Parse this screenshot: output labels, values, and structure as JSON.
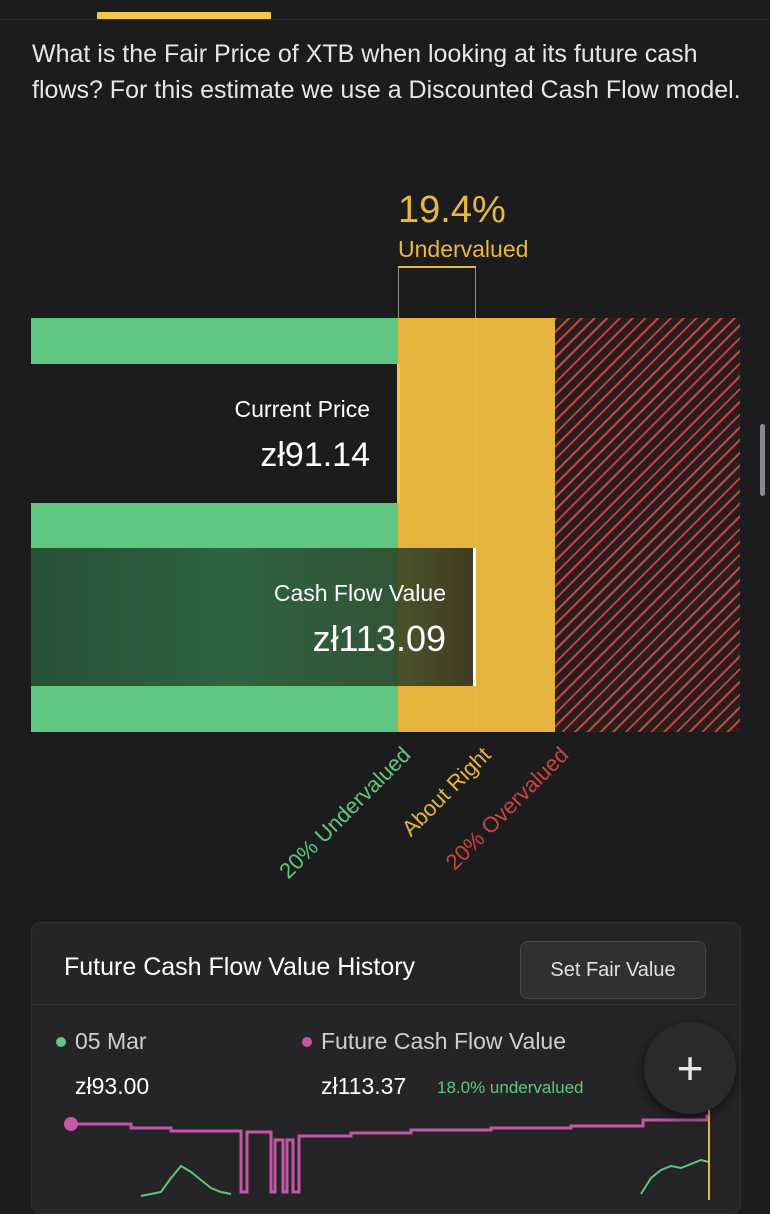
{
  "intro_text": "What is the Fair Price of XTB when looking at its future cash flows? For this estimate we use a Discounted Cash Flow model.",
  "valuation": {
    "percent": "19.4%",
    "status": "Undervalued",
    "current_price_label": "Current Price",
    "current_price_value": "zł91.14",
    "cash_flow_label": "Cash Flow Value",
    "cash_flow_value": "zł113.09"
  },
  "zones": {
    "undervalued": "20% Undervalued",
    "about_right": "About Right",
    "overvalued": "20% Overvalued"
  },
  "history_card": {
    "title": "Future Cash Flow Value History",
    "set_fair_value_button": "Set Fair Value",
    "date": "05 Mar",
    "price": "zł93.00",
    "series_label": "Future Cash Flow Value",
    "series_value": "zł113.37",
    "series_status": "18.0% undervalued"
  },
  "fab": {
    "icon": "plus-icon"
  },
  "colors": {
    "green": "#5fc77f",
    "yellow": "#e5b43e",
    "red": "#c9453f",
    "pink": "#c356a5",
    "background": "#1c1c1e"
  }
}
